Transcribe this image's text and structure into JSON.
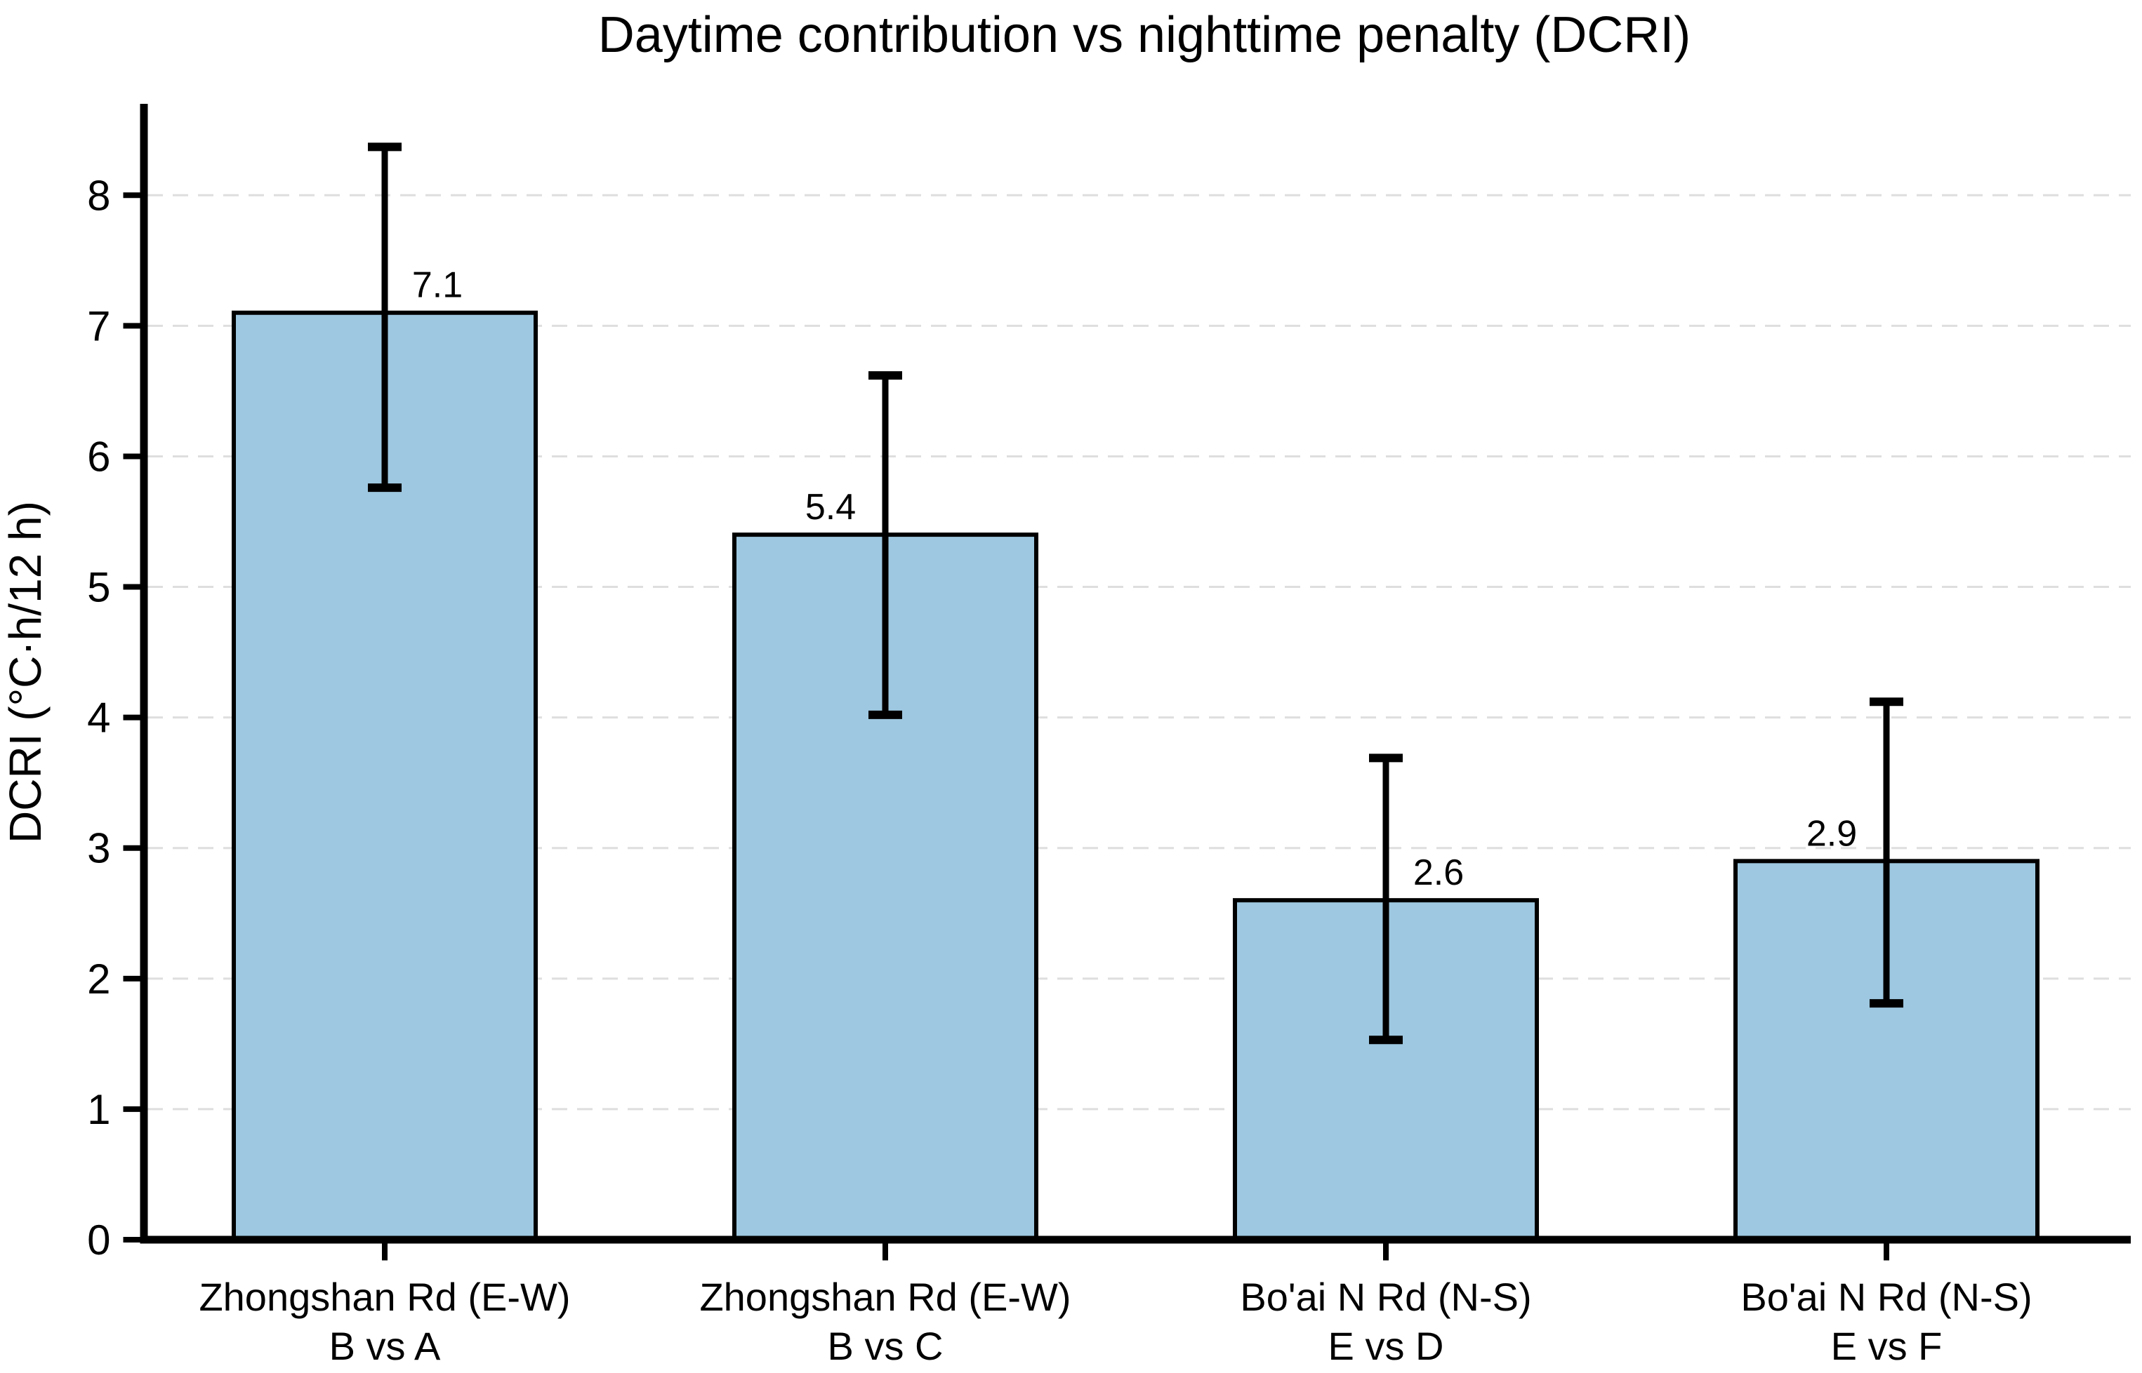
{
  "page": {
    "background_color": "#ffffff",
    "text_color": "#000000"
  },
  "chart_data": {
    "type": "bar",
    "title": "Daytime contribution vs nighttime penalty (DCRI)",
    "xlabel": "",
    "ylabel": "DCRI (°C·h/12 h)",
    "ylim": [
      0,
      8.7
    ],
    "yticks": [
      0,
      1,
      2,
      3,
      4,
      5,
      6,
      7,
      8
    ],
    "grid": "horizontal-dashed",
    "legend": null,
    "bar_color": "#9EC8E1",
    "bar_edge_color": "#000000",
    "error_bar_color": "#000000",
    "grid_color": "#DEDEDE",
    "categories": [
      "Zhongshan Rd (E-W)\nB vs A",
      "Zhongshan Rd (E-W)\nB vs C",
      "Bo'ai N Rd (N-S)\nE vs D",
      "Bo'ai N Rd (N-S)\nE vs F"
    ],
    "bars": [
      {
        "category_line1": "Zhongshan Rd (E-W)",
        "category_line2": "B vs A",
        "value": 7.1,
        "value_label": "7.1",
        "label_side": "right",
        "err_low": 1.34,
        "err_high": 1.27,
        "whisker_low": 5.76,
        "whisker_high": 8.37
      },
      {
        "category_line1": "Zhongshan Rd (E-W)",
        "category_line2": "B vs C",
        "value": 5.4,
        "value_label": "5.4",
        "label_side": "left",
        "err_low": 1.38,
        "err_high": 1.22,
        "whisker_low": 4.02,
        "whisker_high": 6.62
      },
      {
        "category_line1": "Bo'ai N Rd (N-S)",
        "category_line2": "E vs D",
        "value": 2.6,
        "value_label": "2.6",
        "label_side": "right",
        "err_low": 1.07,
        "err_high": 1.09,
        "whisker_low": 1.53,
        "whisker_high": 3.69
      },
      {
        "category_line1": "Bo'ai N Rd (N-S)",
        "category_line2": "E vs F",
        "value": 2.9,
        "value_label": "2.9",
        "label_side": "left",
        "err_low": 1.09,
        "err_high": 1.22,
        "whisker_low": 1.81,
        "whisker_high": 4.12
      }
    ]
  }
}
